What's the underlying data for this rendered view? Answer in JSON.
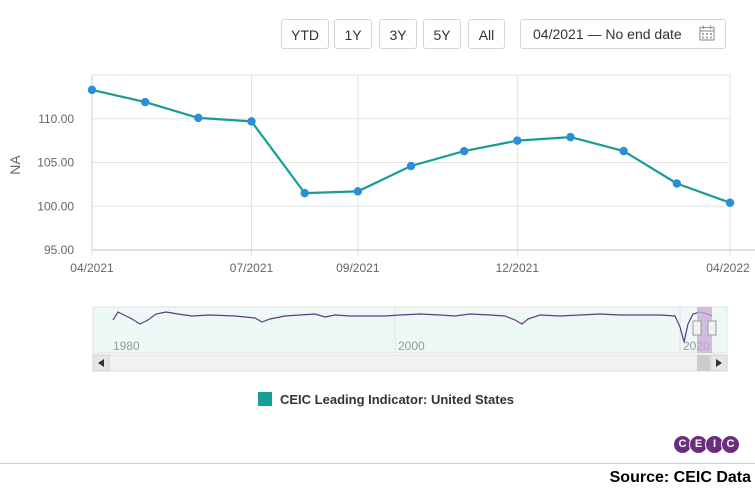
{
  "range_buttons": [
    {
      "label": "YTD"
    },
    {
      "label": "1Y"
    },
    {
      "label": "3Y"
    },
    {
      "label": "5Y"
    },
    {
      "label": "All"
    }
  ],
  "date_range": {
    "text": "04/2021 — No end date"
  },
  "icons": {
    "calendar": "calendar-icon",
    "scroll_left": "arrow-left-icon",
    "scroll_right": "arrow-right-icon"
  },
  "chart_data": {
    "type": "line",
    "title": "",
    "xlabel": "",
    "ylabel": "NA",
    "ylim": [
      95,
      115
    ],
    "yticks": [
      "95.00",
      "100.00",
      "105.00",
      "110.00"
    ],
    "xticks": [
      "04/2021",
      "07/2021",
      "09/2021",
      "12/2021",
      "04/2022"
    ],
    "x": [
      "04/2021",
      "05/2021",
      "06/2021",
      "07/2021",
      "08/2021",
      "09/2021",
      "10/2021",
      "11/2021",
      "12/2021",
      "01/2022",
      "02/2022",
      "03/2022",
      "04/2022"
    ],
    "series": [
      {
        "name": "CEIC Leading Indicator: United States",
        "color": "#159d96",
        "marker_color": "#2b8fd8",
        "values": [
          113.3,
          111.9,
          110.1,
          109.7,
          101.5,
          101.7,
          104.6,
          106.3,
          107.5,
          107.9,
          106.3,
          102.6,
          100.4
        ]
      }
    ],
    "grid": true,
    "legend_position": "bottom-center"
  },
  "navigator": {
    "labels": [
      "1980",
      "2000",
      "2020"
    ],
    "line_color": "#5b3f7a"
  },
  "legend": {
    "label": "CEIC Leading Indicator: United States",
    "color": "#159d96"
  },
  "logo": {
    "letters": [
      "C",
      "E",
      "I",
      "C"
    ]
  },
  "source_text": "Source: CEIC Data"
}
